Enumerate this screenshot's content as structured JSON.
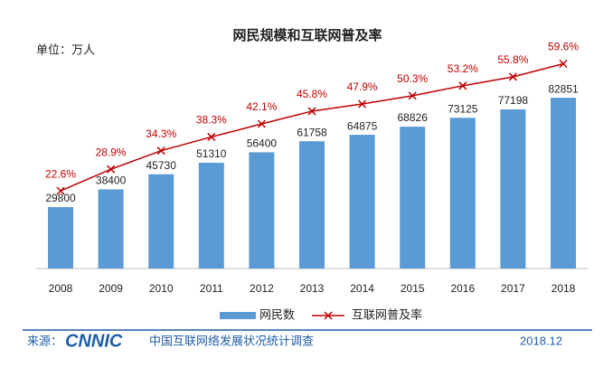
{
  "chart_data": {
    "type": "bar_line",
    "title": "网民规模和互联网普及率",
    "unit_label": "单位：万人",
    "categories": [
      "2008",
      "2009",
      "2010",
      "2011",
      "2012",
      "2013",
      "2014",
      "2015",
      "2016",
      "2017",
      "2018"
    ],
    "series": [
      {
        "name": "网民数",
        "color": "#5b9bd5",
        "type": "bar",
        "values": [
          29800,
          38400,
          45730,
          51310,
          56400,
          61758,
          64875,
          68826,
          73125,
          77198,
          82851
        ]
      },
      {
        "name": "互联网普及率",
        "color": "#c00000",
        "type": "line",
        "axis": "y2",
        "values": [
          22.6,
          28.9,
          34.3,
          38.3,
          42.1,
          45.8,
          47.9,
          50.3,
          53.2,
          55.8,
          59.6
        ],
        "value_labels": [
          "22.6%",
          "28.9%",
          "34.3%",
          "38.3%",
          "42.1%",
          "45.8%",
          "47.9%",
          "50.3%",
          "53.2%",
          "55.8%",
          "59.6%"
        ]
      }
    ],
    "ylim": [
      0,
      100000
    ],
    "y2lim": [
      0,
      60
    ],
    "source_label": "来源：",
    "source_logo": "CNNIC",
    "source_name": "中国互联网络发展状况统计调查",
    "date": "2018.12"
  }
}
